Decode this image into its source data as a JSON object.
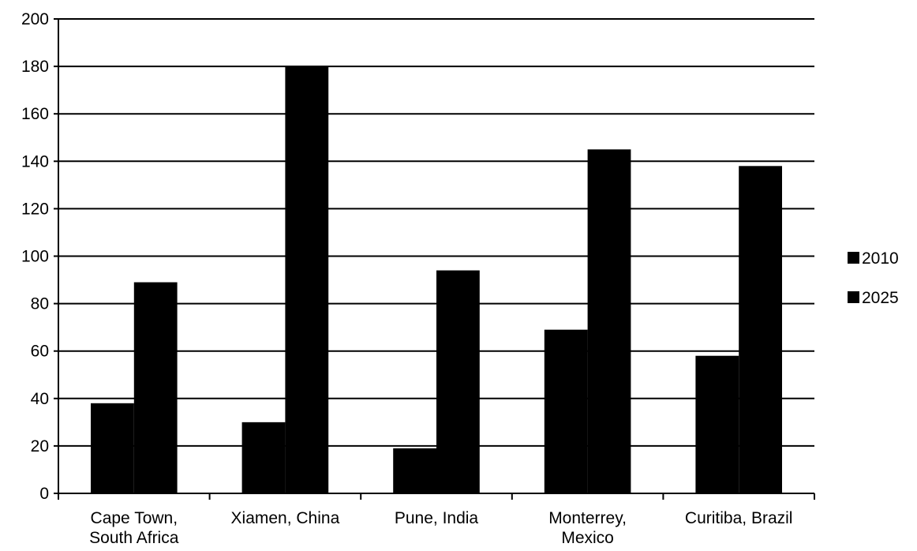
{
  "chart_data": {
    "type": "bar",
    "categories": [
      [
        "Cape Town,",
        "South Africa"
      ],
      [
        "Xiamen, China"
      ],
      [
        "Pune, India"
      ],
      [
        "Monterrey,",
        "Mexico"
      ],
      [
        "Curitiba, Brazil"
      ]
    ],
    "series": [
      {
        "name": "2010",
        "values": [
          38,
          30,
          19,
          69,
          58
        ],
        "color": "#000000"
      },
      {
        "name": "2025",
        "values": [
          89,
          180,
          94,
          145,
          138
        ],
        "color": "#000000"
      }
    ],
    "ylim": [
      0,
      200
    ],
    "y_ticks": [
      0,
      20,
      40,
      60,
      80,
      100,
      120,
      140,
      160,
      180,
      200
    ],
    "grid": true,
    "legend_position": "right",
    "title": "",
    "xlabel": "",
    "ylabel": ""
  }
}
